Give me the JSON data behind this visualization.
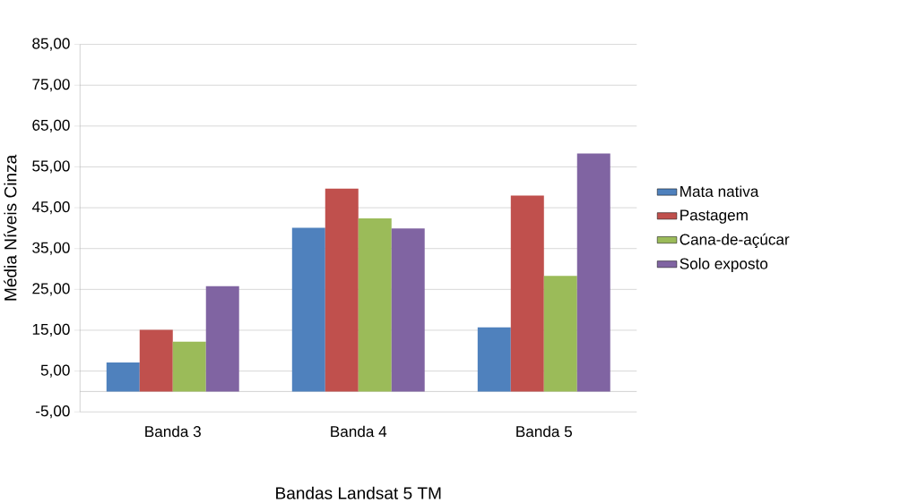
{
  "chart_data": {
    "type": "bar",
    "xlabel": "Bandas Landsat  5 TM",
    "ylabel": "Média Níveis Cinza",
    "categories": [
      "Banda 3",
      "Banda 4",
      "Banda 5"
    ],
    "series": [
      {
        "name": "Mata nativa",
        "color": "#4f81bd",
        "values": [
          7.1,
          40.1,
          15.7
        ]
      },
      {
        "name": "Pastagem",
        "color": "#c0504d",
        "values": [
          15.1,
          49.7,
          48.0
        ]
      },
      {
        "name": "Cana-de-açúcar",
        "color": "#9bbb59",
        "values": [
          12.2,
          42.4,
          28.3
        ]
      },
      {
        "name": "Solo exposto",
        "color": "#8064a2",
        "values": [
          25.8,
          39.9,
          58.3
        ]
      }
    ],
    "ylim": [
      -5,
      85
    ],
    "yticks": [
      {
        "value": -5,
        "label": "-5,00"
      },
      {
        "value": 5,
        "label": "5,00"
      },
      {
        "value": 15,
        "label": "15,00"
      },
      {
        "value": 25,
        "label": "25,00"
      },
      {
        "value": 35,
        "label": "35,00"
      },
      {
        "value": 45,
        "label": "45,00"
      },
      {
        "value": 55,
        "label": "55,00"
      },
      {
        "value": 65,
        "label": "65,00"
      },
      {
        "value": 75,
        "label": "75,00"
      },
      {
        "value": 85,
        "label": "85,00"
      }
    ],
    "grid": "y",
    "legend": "right"
  }
}
